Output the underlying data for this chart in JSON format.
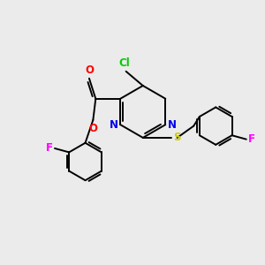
{
  "background_color": "#ebebeb",
  "bond_color": "#000000",
  "atom_colors": {
    "Cl": "#00cc00",
    "N": "#0000ee",
    "O": "#ff0000",
    "S": "#cccc00",
    "F": "#ff00ff"
  },
  "figsize": [
    3.0,
    3.0
  ],
  "dpi": 100
}
